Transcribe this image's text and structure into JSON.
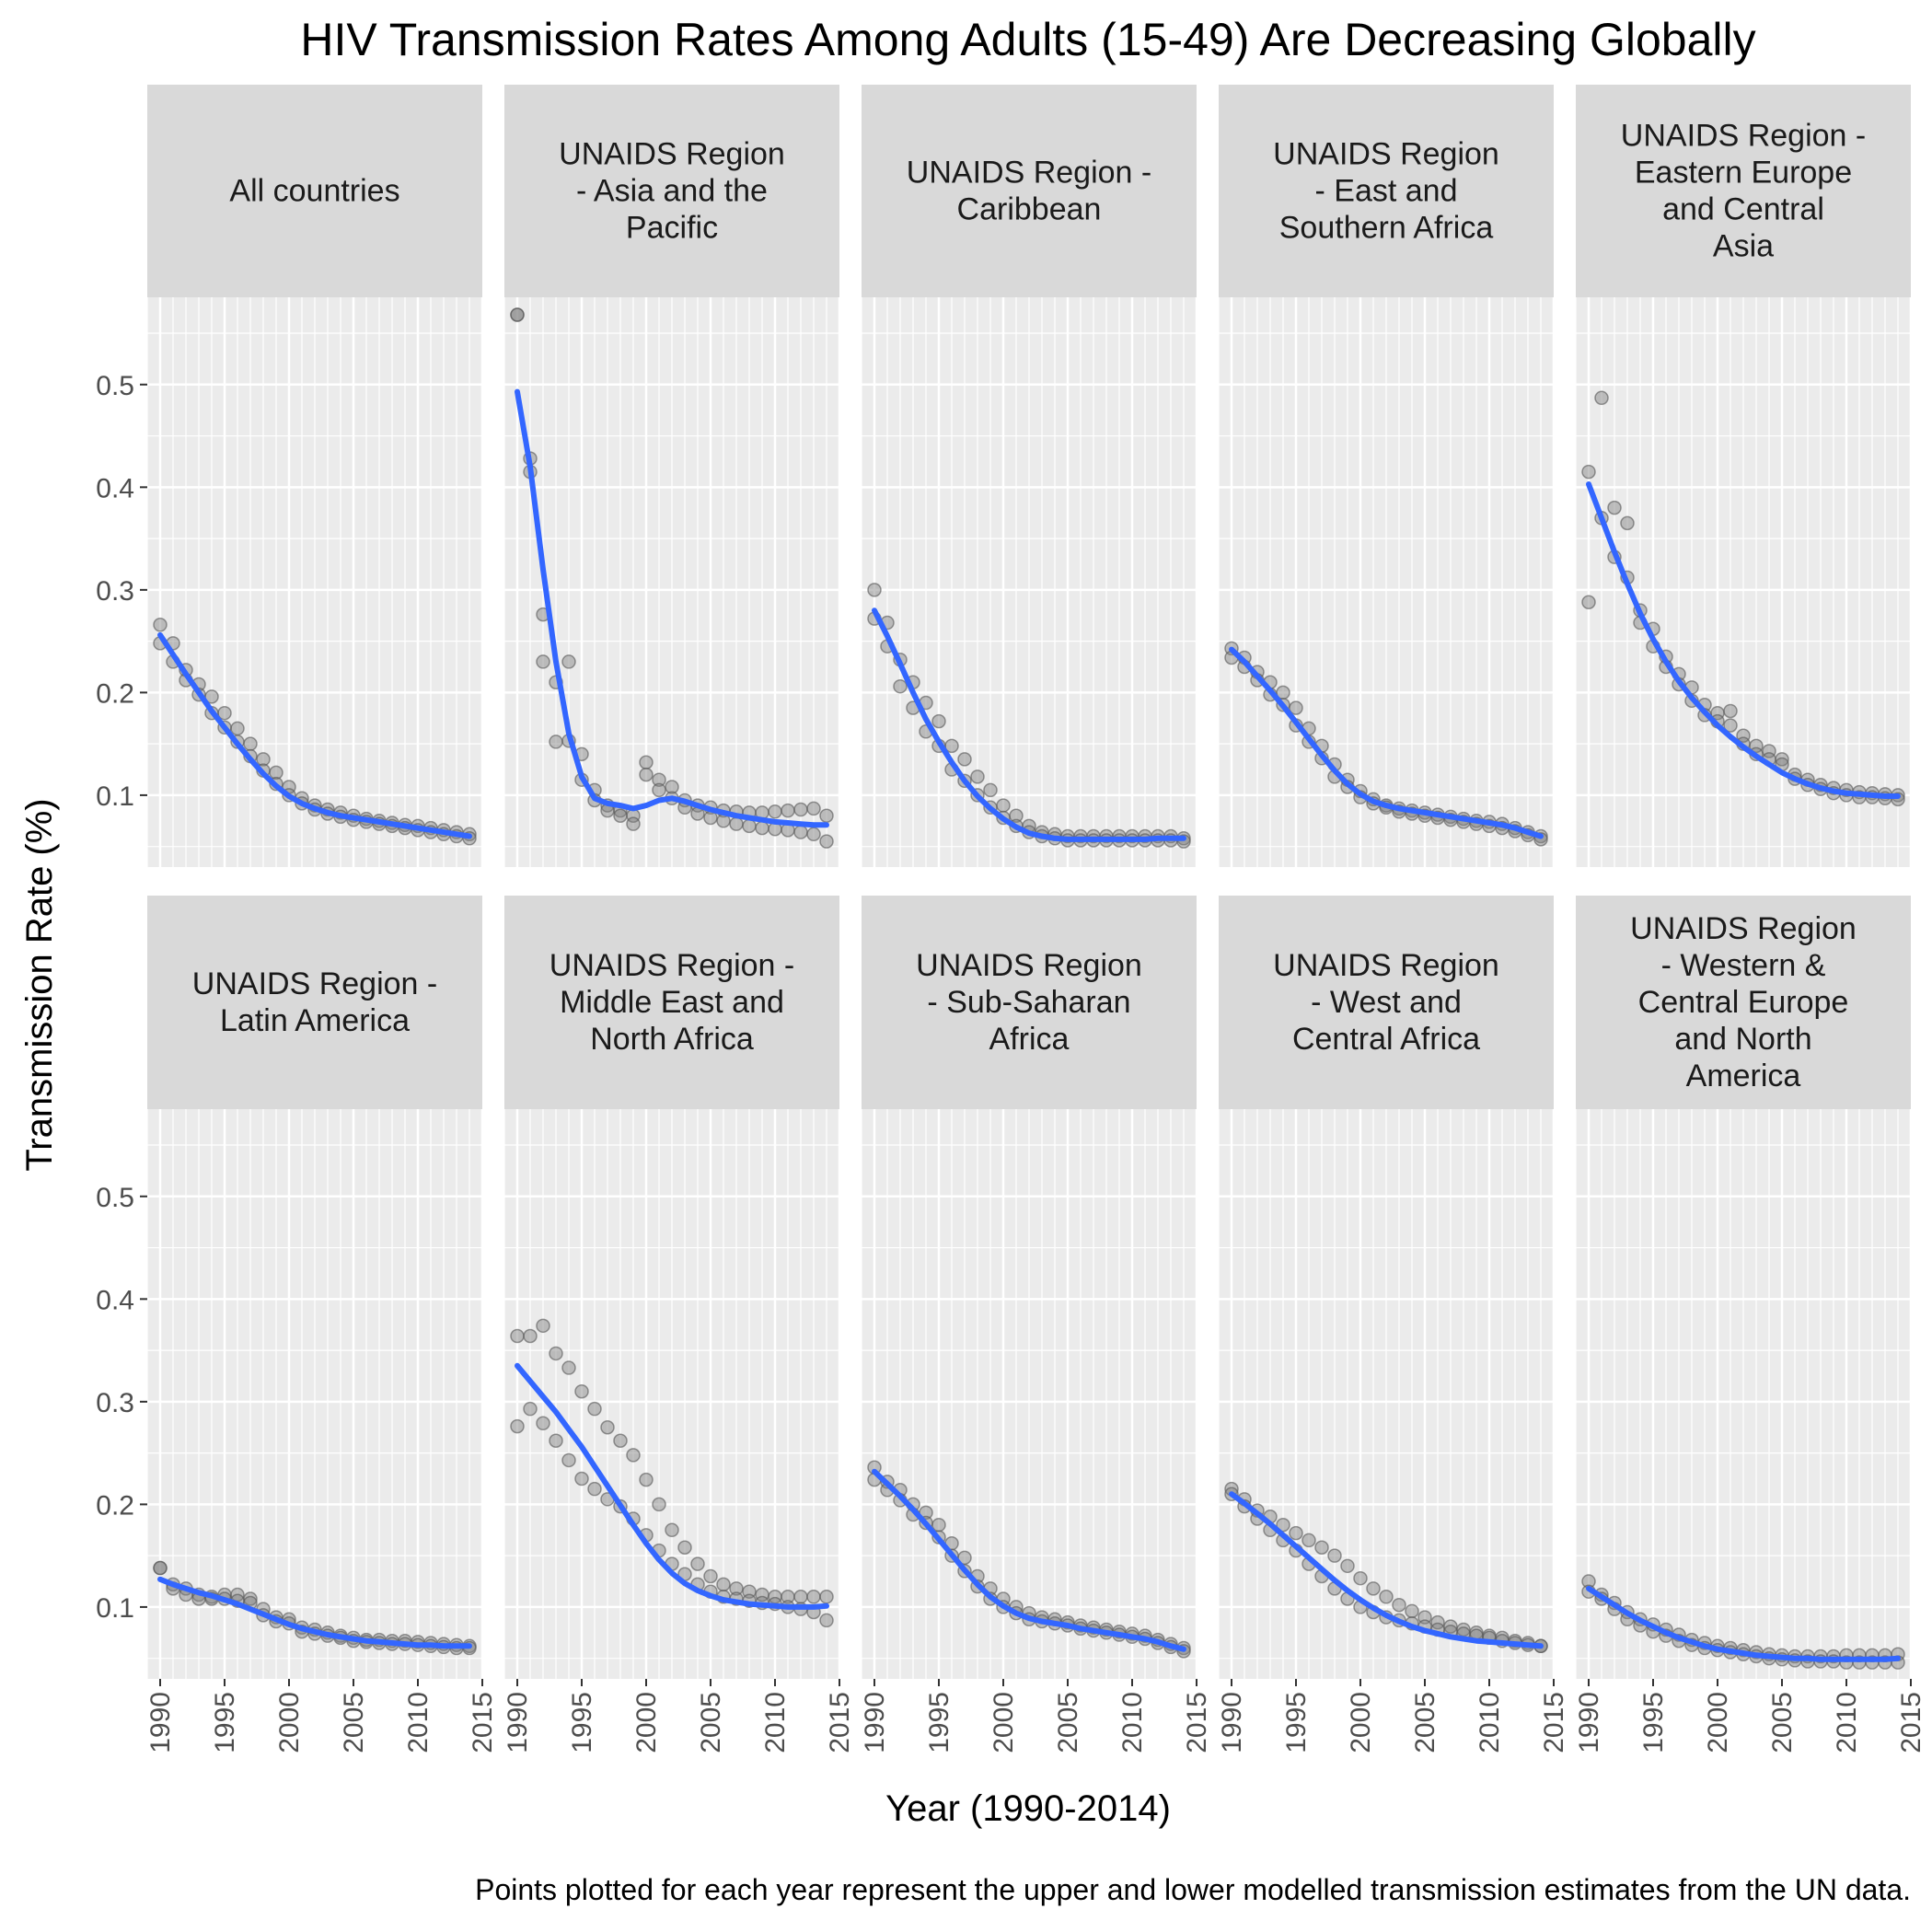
{
  "chart_data": {
    "type": "scatter",
    "title": "HIV Transmission Rates Among Adults (15-49) Are Decreasing Globally",
    "xlabel": "Year (1990-2014)",
    "ylabel": "Transmission Rate (%)",
    "caption": "Points plotted for each year represent the upper and lower modelled transmission estimates from the UN data.",
    "xlim": [
      1989,
      2015
    ],
    "ylim": [
      0.03,
      0.585
    ],
    "x_ticks": [
      1990,
      1995,
      2000,
      2005,
      2010,
      2015
    ],
    "y_ticks": [
      0.1,
      0.2,
      0.3,
      0.4,
      0.5
    ],
    "y_tick_labels": [
      "0.1",
      "0.2",
      "0.3",
      "0.4",
      "0.5"
    ],
    "years": [
      1990,
      1991,
      1992,
      1993,
      1994,
      1995,
      1996,
      1997,
      1998,
      1999,
      2000,
      2001,
      2002,
      2003,
      2004,
      2005,
      2006,
      2007,
      2008,
      2009,
      2010,
      2011,
      2012,
      2013,
      2014
    ],
    "point_color": "#7f7f7f",
    "smooth_color": "#3366ff",
    "panel_background": "#ebebeb",
    "strip_background": "#d9d9d9",
    "grid": true,
    "panels": [
      {
        "label_lines": [
          "All countries"
        ],
        "upper": [
          0.266,
          0.248,
          0.222,
          0.208,
          0.196,
          0.18,
          0.165,
          0.15,
          0.135,
          0.122,
          0.108,
          0.097,
          0.09,
          0.086,
          0.083,
          0.08,
          0.077,
          0.075,
          0.073,
          0.071,
          0.07,
          0.068,
          0.066,
          0.064,
          0.062
        ],
        "lower": [
          0.248,
          0.23,
          0.212,
          0.198,
          0.18,
          0.166,
          0.152,
          0.138,
          0.124,
          0.111,
          0.1,
          0.092,
          0.086,
          0.082,
          0.079,
          0.076,
          0.074,
          0.072,
          0.07,
          0.068,
          0.066,
          0.064,
          0.062,
          0.06,
          0.058
        ],
        "smooth": [
          0.256,
          0.237,
          0.218,
          0.2,
          0.182,
          0.166,
          0.15,
          0.135,
          0.121,
          0.109,
          0.099,
          0.092,
          0.087,
          0.083,
          0.08,
          0.078,
          0.076,
          0.074,
          0.072,
          0.07,
          0.068,
          0.066,
          0.064,
          0.062,
          0.06
        ]
      },
      {
        "label_lines": [
          "UNAIDS Region",
          "- Asia and the",
          "Pacific"
        ],
        "upper": [
          0.568,
          0.428,
          0.276,
          0.21,
          0.23,
          0.14,
          0.105,
          0.09,
          0.085,
          0.08,
          0.132,
          0.115,
          0.108,
          0.095,
          0.09,
          0.088,
          0.085,
          0.084,
          0.083,
          0.083,
          0.084,
          0.085,
          0.086,
          0.087,
          0.08
        ],
        "lower": [
          0.568,
          0.415,
          0.23,
          0.152,
          0.153,
          0.115,
          0.095,
          0.085,
          0.08,
          0.072,
          0.12,
          0.105,
          0.097,
          0.088,
          0.082,
          0.078,
          0.075,
          0.072,
          0.07,
          0.068,
          0.067,
          0.066,
          0.064,
          0.062,
          0.055
        ],
        "smooth": [
          0.493,
          0.42,
          0.32,
          0.23,
          0.16,
          0.118,
          0.097,
          0.092,
          0.09,
          0.087,
          0.09,
          0.095,
          0.097,
          0.094,
          0.09,
          0.086,
          0.083,
          0.08,
          0.078,
          0.076,
          0.074,
          0.073,
          0.072,
          0.071,
          0.071
        ]
      },
      {
        "label_lines": [
          "UNAIDS Region -",
          "Caribbean"
        ],
        "upper": [
          0.3,
          0.268,
          0.232,
          0.21,
          0.19,
          0.172,
          0.148,
          0.135,
          0.118,
          0.105,
          0.09,
          0.08,
          0.07,
          0.064,
          0.062,
          0.06,
          0.06,
          0.06,
          0.06,
          0.06,
          0.06,
          0.06,
          0.06,
          0.06,
          0.058
        ],
        "lower": [
          0.272,
          0.245,
          0.206,
          0.185,
          0.162,
          0.148,
          0.125,
          0.114,
          0.1,
          0.088,
          0.078,
          0.07,
          0.064,
          0.06,
          0.058,
          0.056,
          0.056,
          0.056,
          0.056,
          0.056,
          0.056,
          0.056,
          0.056,
          0.056,
          0.055
        ],
        "smooth": [
          0.28,
          0.255,
          0.228,
          0.2,
          0.174,
          0.152,
          0.132,
          0.114,
          0.099,
          0.087,
          0.077,
          0.069,
          0.063,
          0.06,
          0.058,
          0.057,
          0.057,
          0.057,
          0.057,
          0.057,
          0.057,
          0.057,
          0.058,
          0.058,
          0.058
        ]
      },
      {
        "label_lines": [
          "UNAIDS Region",
          "- East and",
          "Southern Africa"
        ],
        "upper": [
          0.243,
          0.234,
          0.22,
          0.21,
          0.2,
          0.185,
          0.165,
          0.148,
          0.13,
          0.115,
          0.104,
          0.096,
          0.09,
          0.087,
          0.085,
          0.083,
          0.081,
          0.079,
          0.077,
          0.075,
          0.074,
          0.072,
          0.068,
          0.064,
          0.06
        ],
        "lower": [
          0.234,
          0.225,
          0.212,
          0.198,
          0.188,
          0.168,
          0.152,
          0.136,
          0.118,
          0.108,
          0.098,
          0.092,
          0.088,
          0.084,
          0.082,
          0.08,
          0.078,
          0.076,
          0.074,
          0.072,
          0.07,
          0.068,
          0.065,
          0.061,
          0.057
        ],
        "smooth": [
          0.242,
          0.23,
          0.216,
          0.202,
          0.187,
          0.171,
          0.155,
          0.139,
          0.124,
          0.111,
          0.101,
          0.094,
          0.09,
          0.087,
          0.085,
          0.083,
          0.081,
          0.079,
          0.077,
          0.075,
          0.073,
          0.071,
          0.068,
          0.064,
          0.06
        ]
      },
      {
        "label_lines": [
          "UNAIDS Region -",
          "Eastern Europe",
          "and Central",
          "Asia"
        ],
        "upper": [
          0.415,
          0.487,
          0.38,
          0.365,
          0.28,
          0.262,
          0.235,
          0.218,
          0.205,
          0.188,
          0.18,
          0.182,
          0.158,
          0.148,
          0.143,
          0.135,
          0.12,
          0.115,
          0.11,
          0.107,
          0.105,
          0.103,
          0.102,
          0.101,
          0.1
        ],
        "lower": [
          0.288,
          0.37,
          0.332,
          0.312,
          0.268,
          0.245,
          0.225,
          0.208,
          0.192,
          0.178,
          0.172,
          0.168,
          0.15,
          0.14,
          0.135,
          0.13,
          0.116,
          0.11,
          0.106,
          0.102,
          0.1,
          0.098,
          0.098,
          0.097,
          0.096
        ],
        "smooth": [
          0.403,
          0.37,
          0.337,
          0.306,
          0.277,
          0.252,
          0.23,
          0.211,
          0.195,
          0.181,
          0.168,
          0.157,
          0.147,
          0.138,
          0.13,
          0.122,
          0.116,
          0.111,
          0.107,
          0.104,
          0.102,
          0.101,
          0.1,
          0.099,
          0.099
        ]
      },
      {
        "label_lines": [
          "UNAIDS Region -",
          "Latin America"
        ],
        "upper": [
          0.138,
          0.122,
          0.118,
          0.112,
          0.11,
          0.112,
          0.112,
          0.108,
          0.098,
          0.09,
          0.088,
          0.08,
          0.078,
          0.075,
          0.072,
          0.07,
          0.068,
          0.068,
          0.067,
          0.067,
          0.066,
          0.065,
          0.064,
          0.063,
          0.062
        ],
        "lower": [
          0.138,
          0.118,
          0.112,
          0.108,
          0.108,
          0.108,
          0.106,
          0.104,
          0.092,
          0.086,
          0.084,
          0.076,
          0.074,
          0.072,
          0.07,
          0.067,
          0.066,
          0.065,
          0.064,
          0.064,
          0.063,
          0.062,
          0.061,
          0.06,
          0.06
        ],
        "smooth": [
          0.127,
          0.122,
          0.118,
          0.114,
          0.111,
          0.107,
          0.103,
          0.098,
          0.093,
          0.088,
          0.083,
          0.079,
          0.076,
          0.073,
          0.071,
          0.069,
          0.067,
          0.066,
          0.065,
          0.064,
          0.063,
          0.063,
          0.062,
          0.062,
          0.062
        ]
      },
      {
        "label_lines": [
          "UNAIDS Region -",
          "Middle East and",
          "North Africa"
        ],
        "upper": [
          0.364,
          0.364,
          0.374,
          0.347,
          0.333,
          0.31,
          0.293,
          0.275,
          0.262,
          0.248,
          0.224,
          0.2,
          0.175,
          0.158,
          0.142,
          0.13,
          0.122,
          0.118,
          0.115,
          0.112,
          0.11,
          0.11,
          0.11,
          0.11,
          0.11
        ],
        "lower": [
          0.276,
          0.293,
          0.279,
          0.262,
          0.243,
          0.225,
          0.215,
          0.205,
          0.198,
          0.186,
          0.17,
          0.155,
          0.142,
          0.132,
          0.122,
          0.115,
          0.11,
          0.108,
          0.106,
          0.104,
          0.103,
          0.1,
          0.098,
          0.095,
          0.087
        ],
        "smooth": [
          0.335,
          0.32,
          0.305,
          0.29,
          0.273,
          0.256,
          0.237,
          0.218,
          0.199,
          0.18,
          0.162,
          0.146,
          0.133,
          0.123,
          0.116,
          0.111,
          0.107,
          0.105,
          0.103,
          0.102,
          0.101,
          0.1,
          0.1,
          0.1,
          0.101
        ]
      },
      {
        "label_lines": [
          "UNAIDS Region",
          "- Sub-Saharan",
          "Africa"
        ],
        "upper": [
          0.236,
          0.222,
          0.214,
          0.2,
          0.192,
          0.18,
          0.162,
          0.148,
          0.13,
          0.118,
          0.108,
          0.1,
          0.094,
          0.09,
          0.088,
          0.085,
          0.082,
          0.08,
          0.078,
          0.076,
          0.074,
          0.072,
          0.068,
          0.064,
          0.06
        ],
        "lower": [
          0.224,
          0.214,
          0.204,
          0.19,
          0.182,
          0.168,
          0.15,
          0.135,
          0.12,
          0.108,
          0.1,
          0.094,
          0.088,
          0.086,
          0.084,
          0.082,
          0.079,
          0.077,
          0.075,
          0.073,
          0.071,
          0.069,
          0.065,
          0.061,
          0.057
        ],
        "smooth": [
          0.232,
          0.22,
          0.208,
          0.195,
          0.181,
          0.166,
          0.151,
          0.136,
          0.122,
          0.11,
          0.101,
          0.094,
          0.089,
          0.086,
          0.084,
          0.082,
          0.079,
          0.077,
          0.075,
          0.073,
          0.071,
          0.069,
          0.066,
          0.062,
          0.059
        ]
      },
      {
        "label_lines": [
          "UNAIDS Region",
          "- West and",
          "Central Africa"
        ],
        "upper": [
          0.215,
          0.205,
          0.194,
          0.188,
          0.18,
          0.172,
          0.165,
          0.158,
          0.15,
          0.14,
          0.128,
          0.118,
          0.11,
          0.102,
          0.096,
          0.09,
          0.085,
          0.081,
          0.078,
          0.075,
          0.072,
          0.07,
          0.067,
          0.065,
          0.062
        ],
        "lower": [
          0.21,
          0.198,
          0.186,
          0.175,
          0.165,
          0.155,
          0.142,
          0.13,
          0.118,
          0.108,
          0.1,
          0.095,
          0.09,
          0.087,
          0.084,
          0.081,
          0.078,
          0.076,
          0.074,
          0.072,
          0.07,
          0.067,
          0.065,
          0.063,
          0.062
        ],
        "smooth": [
          0.21,
          0.201,
          0.191,
          0.181,
          0.17,
          0.159,
          0.148,
          0.137,
          0.126,
          0.116,
          0.107,
          0.099,
          0.092,
          0.086,
          0.081,
          0.077,
          0.074,
          0.071,
          0.069,
          0.067,
          0.066,
          0.065,
          0.064,
          0.063,
          0.062
        ]
      },
      {
        "label_lines": [
          "UNAIDS Region",
          "- Western &",
          "Central Europe",
          "and North",
          "America"
        ],
        "upper": [
          0.125,
          0.112,
          0.104,
          0.095,
          0.088,
          0.083,
          0.078,
          0.073,
          0.068,
          0.065,
          0.062,
          0.06,
          0.058,
          0.056,
          0.054,
          0.053,
          0.052,
          0.052,
          0.052,
          0.052,
          0.053,
          0.053,
          0.053,
          0.053,
          0.054
        ],
        "lower": [
          0.115,
          0.108,
          0.098,
          0.088,
          0.082,
          0.076,
          0.072,
          0.067,
          0.063,
          0.06,
          0.058,
          0.056,
          0.054,
          0.052,
          0.05,
          0.049,
          0.048,
          0.047,
          0.047,
          0.047,
          0.046,
          0.046,
          0.046,
          0.046,
          0.046
        ],
        "smooth": [
          0.118,
          0.11,
          0.102,
          0.094,
          0.087,
          0.081,
          0.075,
          0.07,
          0.066,
          0.062,
          0.059,
          0.057,
          0.055,
          0.053,
          0.052,
          0.051,
          0.05,
          0.05,
          0.049,
          0.049,
          0.049,
          0.049,
          0.049,
          0.049,
          0.05
        ]
      }
    ]
  }
}
